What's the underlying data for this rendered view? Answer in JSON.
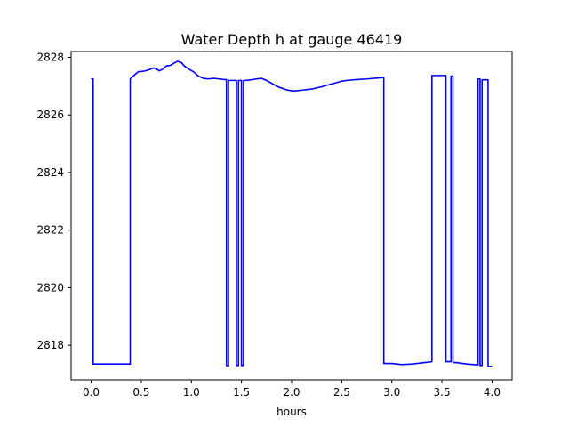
{
  "chart_data": {
    "type": "line",
    "title": "Water Depth h at gauge 46419",
    "xlabel": "hours",
    "ylabel": "",
    "xlim": [
      -0.2,
      4.2
    ],
    "ylim": [
      2816.8,
      2828.2
    ],
    "xticks": [
      0.0,
      0.5,
      1.0,
      1.5,
      2.0,
      2.5,
      3.0,
      3.5,
      4.0
    ],
    "xtick_labels": [
      "0.0",
      "0.5",
      "1.0",
      "1.5",
      "2.0",
      "2.5",
      "3.0",
      "3.5",
      "4.0"
    ],
    "yticks": [
      2818,
      2820,
      2822,
      2824,
      2826,
      2828
    ],
    "ytick_labels": [
      "2818",
      "2820",
      "2822",
      "2824",
      "2826",
      "2828"
    ],
    "grid": false,
    "series": [
      {
        "color": "#0000ff",
        "x": [
          0.0,
          0.02,
          0.02,
          0.39,
          0.39,
          0.42,
          0.47,
          0.53,
          0.58,
          0.62,
          0.65,
          0.68,
          0.71,
          0.75,
          0.79,
          0.83,
          0.86,
          0.9,
          0.93,
          0.97,
          1.02,
          1.07,
          1.12,
          1.17,
          1.22,
          1.28,
          1.33,
          1.35,
          1.35,
          1.37,
          1.37,
          1.45,
          1.45,
          1.47,
          1.47,
          1.5,
          1.5,
          1.52,
          1.52,
          1.55,
          1.6,
          1.65,
          1.7,
          1.75,
          1.8,
          1.87,
          1.95,
          2.02,
          2.1,
          2.2,
          2.3,
          2.4,
          2.5,
          2.55,
          2.65,
          2.75,
          2.85,
          2.92,
          2.92,
          3.0,
          3.1,
          3.2,
          3.3,
          3.4,
          3.4,
          3.54,
          3.54,
          3.59,
          3.59,
          3.61,
          3.61,
          3.64,
          3.75,
          3.86,
          3.86,
          3.88,
          3.88,
          3.9,
          3.9,
          3.96,
          3.96,
          4.0
        ],
        "y": [
          2827.25,
          2827.25,
          2817.35,
          2817.35,
          2827.25,
          2827.35,
          2827.5,
          2827.52,
          2827.57,
          2827.63,
          2827.6,
          2827.53,
          2827.58,
          2827.7,
          2827.72,
          2827.8,
          2827.86,
          2827.82,
          2827.7,
          2827.6,
          2827.5,
          2827.35,
          2827.27,
          2827.25,
          2827.27,
          2827.25,
          2827.23,
          2827.23,
          2817.3,
          2817.28,
          2827.2,
          2827.2,
          2817.3,
          2817.3,
          2827.2,
          2827.2,
          2817.3,
          2817.3,
          2827.2,
          2827.2,
          2827.22,
          2827.25,
          2827.27,
          2827.2,
          2827.1,
          2826.97,
          2826.87,
          2826.83,
          2826.86,
          2826.9,
          2826.98,
          2827.08,
          2827.17,
          2827.2,
          2827.23,
          2827.25,
          2827.28,
          2827.3,
          2817.37,
          2817.37,
          2817.33,
          2817.35,
          2817.39,
          2817.43,
          2827.37,
          2827.37,
          2817.43,
          2817.43,
          2827.35,
          2827.35,
          2817.4,
          2817.4,
          2817.35,
          2817.32,
          2827.25,
          2827.25,
          2817.3,
          2817.3,
          2827.22,
          2827.22,
          2817.27,
          2817.27
        ]
      }
    ]
  }
}
